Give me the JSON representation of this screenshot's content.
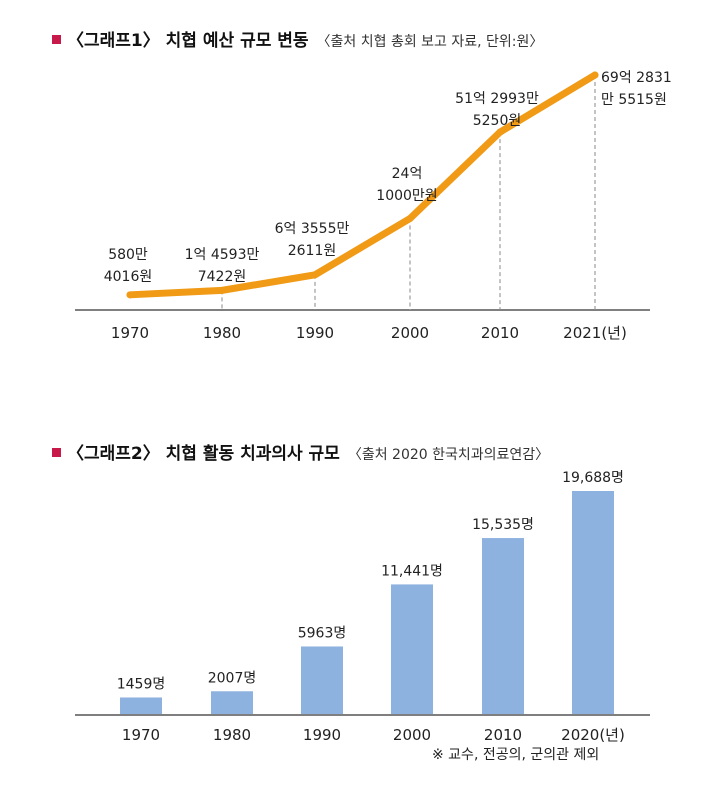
{
  "graph1": {
    "heading": "〈그래프1〉 치협 예산 규모 변동",
    "source": "〈출처 치협 총회 보고 자료, 단위:원〉"
  },
  "graph2": {
    "heading": "〈그래프2〉 치협 활동 치과의사 규모",
    "source": "〈출처 2020 한국치과의료연감〉"
  },
  "footnote": "※ 교수, 전공의, 군의관 제외",
  "colors": {
    "line": "#f09a16",
    "bar": "#8db2df",
    "marker": "#c8194b",
    "axis": "#333333",
    "dash": "#888888"
  },
  "chart_data": [
    {
      "type": "line",
      "title": "〈그래프1〉 치협 예산 규모 변동",
      "x_labels": [
        "1970",
        "1980",
        "1990",
        "2000",
        "2010",
        "2021(년)"
      ],
      "x": [
        1970,
        1980,
        1990,
        2000,
        2010,
        2021
      ],
      "values": [
        5804016,
        145937422,
        635552611,
        2410000000,
        5129935250,
        6928315515
      ],
      "value_labels": [
        [
          "580만",
          "4016원"
        ],
        [
          "1억 4593만",
          "7422원"
        ],
        [
          "6억 3555만",
          "2611원"
        ],
        [
          "24억",
          "1000만원"
        ],
        [
          "51억 2993만",
          "5250원"
        ],
        [
          "69억 2831",
          "만 5515원"
        ]
      ],
      "unit": "원",
      "grid": false
    },
    {
      "type": "bar",
      "title": "〈그래프2〉 치협 활동 치과의사 규모",
      "categories": [
        "1970",
        "1980",
        "1990",
        "2000",
        "2010",
        "2020(년)"
      ],
      "values": [
        1459,
        2007,
        5963,
        11441,
        15535,
        19688
      ],
      "value_labels": [
        "1459명",
        "2007명",
        "5963명",
        "11,441명",
        "15,535명",
        "19,688명"
      ],
      "unit": "명",
      "grid": false
    }
  ]
}
